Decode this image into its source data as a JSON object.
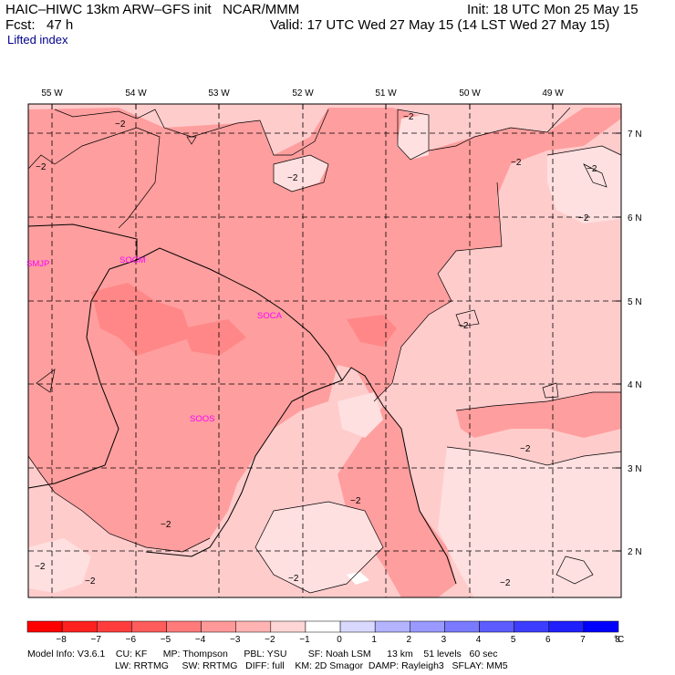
{
  "header": {
    "line1_left": "HAIC–HIWC 13km ARW–GFS init   NCAR/MMM",
    "line1_right": "Init: 18 UTC Mon 25 May 15",
    "line2_left": "Fcst:   47 h",
    "line2_right": "Valid: 17 UTC Wed 27 May 15 (14 LST Wed 27 May 15)",
    "field": "Lifted index"
  },
  "axes": {
    "lon_labels": [
      "55 W",
      "54 W",
      "53 W",
      "52 W",
      "51 W",
      "50 W",
      "49 W"
    ],
    "lat_labels": [
      "7 N",
      "6 N",
      "5 N",
      "4 N",
      "3 N",
      "2 N"
    ]
  },
  "stations": [
    "SMJP",
    "SOCM",
    "SOCA",
    "SOOS"
  ],
  "contour_label": "−2",
  "colorbar": {
    "labels": [
      "−8",
      "−7",
      "−6",
      "−5",
      "−4",
      "−3",
      "−2",
      "−1",
      "0",
      "1",
      "2",
      "3",
      "4",
      "5",
      "6",
      "7",
      "8"
    ],
    "unit": "°C",
    "colors": [
      "#ff0000",
      "#ff2020",
      "#ff3d3d",
      "#ff5c5c",
      "#ff7a7a",
      "#ff9999",
      "#ffb3b3",
      "#ffd6d6",
      "#ffffff",
      "#d9d9ff",
      "#b3b3ff",
      "#9999ff",
      "#7a7aff",
      "#5c5cff",
      "#3d3dff",
      "#2020ff",
      "#0000ff"
    ]
  },
  "footer": {
    "line1": "Model Info: V3.6.1    CU: KF      MP: Thompson      PBL: YSU        SF: Noah LSM      13 km    51 levels   60 sec",
    "line2": "LW: RRTMG     SW: RRTMG   DIFF: full    KM: 2D Smagor  DAMP: Rayleigh3   SFLAY: MM5"
  }
}
